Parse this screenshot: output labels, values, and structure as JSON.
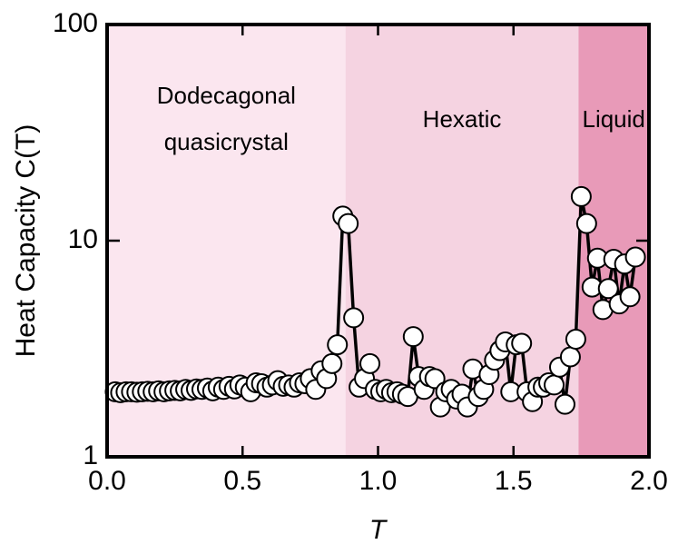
{
  "chart_data": {
    "type": "line",
    "xlabel": "T",
    "ylabel": "Heat Capacity C(T)",
    "xlim": [
      0,
      2
    ],
    "ylim": [
      1,
      100
    ],
    "log_y": true,
    "xticks": [
      {
        "value": 0,
        "label": "0.0"
      },
      0.5,
      {
        "value": 1,
        "label": "1.0"
      },
      1.5,
      {
        "value": 2,
        "label": "2.0"
      }
    ],
    "yticks": [
      1,
      10,
      100
    ],
    "regions": [
      {
        "label": [
          "Dodecagonal",
          "quasicrystal"
        ],
        "start": 0,
        "end": 0.88,
        "color": "#fbe6ef"
      },
      {
        "label": [
          "Hexatic"
        ],
        "start": 0.88,
        "end": 1.74,
        "color": "#f5d3e1"
      },
      {
        "label": [
          "Liquid"
        ],
        "start": 1.74,
        "end": 2,
        "color": "#e89ab8"
      }
    ],
    "x": [
      0.03,
      0.05,
      0.07,
      0.09,
      0.11,
      0.13,
      0.15,
      0.17,
      0.19,
      0.21,
      0.23,
      0.25,
      0.27,
      0.29,
      0.31,
      0.33,
      0.35,
      0.37,
      0.39,
      0.41,
      0.43,
      0.45,
      0.47,
      0.49,
      0.51,
      0.53,
      0.55,
      0.57,
      0.59,
      0.61,
      0.63,
      0.65,
      0.67,
      0.69,
      0.71,
      0.73,
      0.75,
      0.77,
      0.79,
      0.81,
      0.83,
      0.85,
      0.87,
      0.89,
      0.91,
      0.93,
      0.95,
      0.97,
      0.99,
      1.01,
      1.03,
      1.05,
      1.07,
      1.09,
      1.11,
      1.13,
      1.15,
      1.17,
      1.19,
      1.21,
      1.23,
      1.25,
      1.27,
      1.29,
      1.31,
      1.33,
      1.35,
      1.37,
      1.39,
      1.41,
      1.43,
      1.45,
      1.47,
      1.49,
      1.51,
      1.53,
      1.55,
      1.57,
      1.59,
      1.61,
      1.63,
      1.65,
      1.67,
      1.69,
      1.71,
      1.73,
      1.75,
      1.77,
      1.79,
      1.81,
      1.83,
      1.85,
      1.87,
      1.89,
      1.91,
      1.93,
      1.95
    ],
    "series": [
      {
        "color": "#000000",
        "marker_fill": "#ffffff",
        "values": [
          2.0,
          1.98,
          2.0,
          2.0,
          1.99,
          2.0,
          2.01,
          2.0,
          2.02,
          2.0,
          2.02,
          2.03,
          2.02,
          2.05,
          2.03,
          2.06,
          2.05,
          2.08,
          2.02,
          2.1,
          2.05,
          2.12,
          2.06,
          2.15,
          2.1,
          2.0,
          2.2,
          2.18,
          2.1,
          2.15,
          2.25,
          2.12,
          2.15,
          2.1,
          2.2,
          2.18,
          2.3,
          2.05,
          2.5,
          2.3,
          2.7,
          3.3,
          13,
          12,
          4.4,
          2.1,
          2.3,
          2.7,
          2.05,
          2.0,
          2.05,
          1.98,
          2.0,
          1.95,
          1.9,
          3.6,
          2.35,
          2.05,
          2.35,
          2.3,
          1.7,
          2.0,
          2.05,
          1.85,
          1.95,
          1.7,
          2.55,
          1.9,
          2.05,
          2.4,
          2.8,
          3.1,
          3.4,
          2.0,
          3.3,
          3.35,
          2.0,
          1.8,
          2.1,
          2.1,
          2.2,
          2.15,
          2.6,
          1.75,
          2.9,
          3.5,
          16,
          12,
          6.1,
          8.3,
          4.8,
          6.0,
          8.2,
          5.1,
          7.8,
          5.5,
          8.4
        ]
      }
    ]
  }
}
